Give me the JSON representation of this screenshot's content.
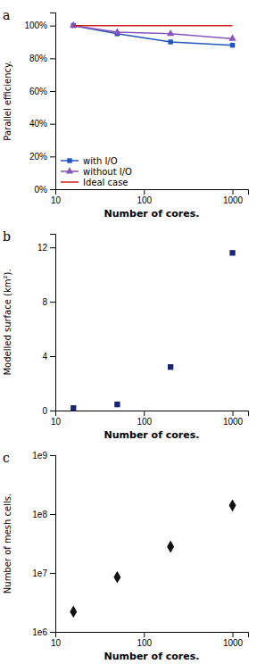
{
  "chart_data": [
    {
      "type": "line",
      "title": "a",
      "xlabel": "Number of cores.",
      "ylabel": "Parallel efficiency.",
      "x": [
        16,
        50,
        200,
        1000
      ],
      "series": [
        {
          "name": "with I/O",
          "color": "#2255bb",
          "marker": "square",
          "values": [
            100,
            95,
            90,
            88
          ]
        },
        {
          "name": "without I/O",
          "color": "#8855bb",
          "marker": "triangle",
          "values": [
            100,
            96,
            95,
            92
          ]
        },
        {
          "name": "Ideal case",
          "color": "#cc2222",
          "values": [
            100,
            100,
            100,
            100
          ]
        }
      ],
      "log": "x",
      "xlim": [
        10,
        1500
      ],
      "xticks": [
        10,
        100,
        1000
      ],
      "ylim": [
        0,
        108
      ],
      "yticks": [
        {
          "value": 0,
          "label": "0%"
        },
        {
          "value": 20,
          "label": "20%"
        },
        {
          "value": 40,
          "label": "40%"
        },
        {
          "value": 60,
          "label": "60%"
        },
        {
          "value": 80,
          "label": "80%"
        },
        {
          "value": 100,
          "label": "100%"
        }
      ],
      "legend": "lower left"
    },
    {
      "type": "scatter",
      "title": "b",
      "xlabel": "Number of cores.",
      "ylabel": "Modelled surface (km²).",
      "x": [
        16,
        50,
        200,
        1000
      ],
      "values": [
        0.18,
        0.45,
        3.2,
        11.6
      ],
      "color": "#1a2472",
      "marker": "square",
      "log": "x",
      "xlim": [
        10,
        1500
      ],
      "xticks": [
        10,
        100,
        1000
      ],
      "ylim": [
        0,
        13
      ],
      "yticks": [
        0,
        4,
        8,
        12
      ]
    },
    {
      "type": "scatter",
      "title": "c",
      "xlabel": "Number of cores.",
      "ylabel": "Number of mesh cells.",
      "x": [
        16,
        50,
        200,
        1000
      ],
      "values": [
        2200000,
        8500000,
        28000000,
        140000000
      ],
      "color": "#111111",
      "marker": "diamond",
      "log": true,
      "xlim": [
        10,
        1500
      ],
      "xticks": [
        10,
        100,
        1000
      ],
      "ylim": [
        1000000,
        1000000000
      ],
      "yticks": [
        {
          "value": 1000000,
          "label": "1e6"
        },
        {
          "value": 10000000,
          "label": "1e7"
        },
        {
          "value": 100000000,
          "label": "1e8"
        },
        {
          "value": 1000000000,
          "label": "1e9"
        }
      ]
    }
  ]
}
